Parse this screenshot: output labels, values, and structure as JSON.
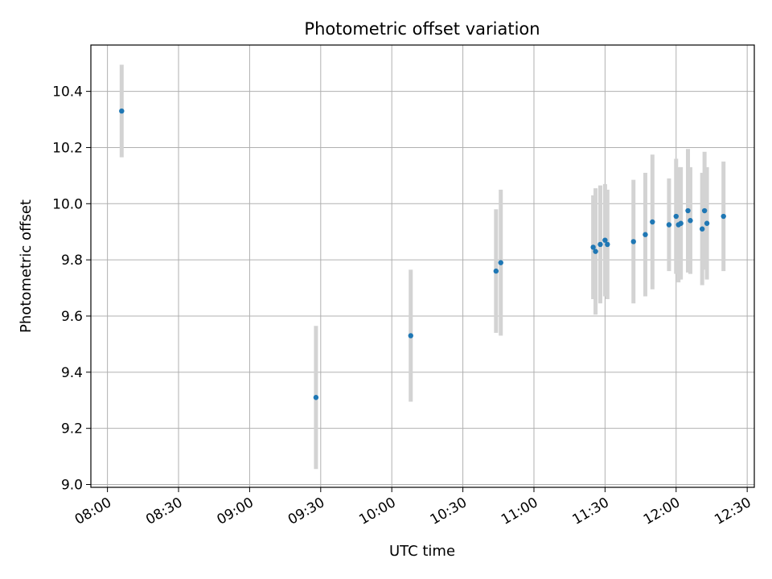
{
  "chart_data": {
    "type": "scatter",
    "title": "Photometric offset variation",
    "xlabel": "UTC time",
    "ylabel": "Photometric offset",
    "xlim": [
      "07:53",
      "12:33"
    ],
    "ylim": [
      8.99,
      10.565
    ],
    "grid": true,
    "x_ticks": [
      "08:00",
      "08:30",
      "09:00",
      "09:30",
      "10:00",
      "10:30",
      "11:00",
      "11:30",
      "12:00",
      "12:30"
    ],
    "y_ticks": [
      "9.0",
      "9.2",
      "9.4",
      "9.6",
      "9.8",
      "10.0",
      "10.2",
      "10.4"
    ],
    "point_color": "#1f77b4",
    "errorbar_color": "#d3d3d3",
    "points": [
      {
        "x": "08:06",
        "y": 10.33,
        "err": 0.165
      },
      {
        "x": "09:28",
        "y": 9.31,
        "err": 0.255
      },
      {
        "x": "10:08",
        "y": 9.53,
        "err": 0.235
      },
      {
        "x": "10:44",
        "y": 9.76,
        "err": 0.22
      },
      {
        "x": "10:46",
        "y": 9.79,
        "err": 0.26
      },
      {
        "x": "11:25",
        "y": 9.845,
        "err": 0.185
      },
      {
        "x": "11:26",
        "y": 9.83,
        "err": 0.225
      },
      {
        "x": "11:28",
        "y": 9.855,
        "err": 0.21
      },
      {
        "x": "11:30",
        "y": 9.87,
        "err": 0.2
      },
      {
        "x": "11:31",
        "y": 9.855,
        "err": 0.195
      },
      {
        "x": "11:42",
        "y": 9.865,
        "err": 0.22
      },
      {
        "x": "11:47",
        "y": 9.89,
        "err": 0.22
      },
      {
        "x": "11:50",
        "y": 9.935,
        "err": 0.24
      },
      {
        "x": "11:57",
        "y": 9.925,
        "err": 0.165
      },
      {
        "x": "12:00",
        "y": 9.955,
        "err": 0.205
      },
      {
        "x": "12:01",
        "y": 9.925,
        "err": 0.205
      },
      {
        "x": "12:02",
        "y": 9.93,
        "err": 0.2
      },
      {
        "x": "12:05",
        "y": 9.975,
        "err": 0.22
      },
      {
        "x": "12:06",
        "y": 9.94,
        "err": 0.19
      },
      {
        "x": "12:11",
        "y": 9.91,
        "err": 0.2
      },
      {
        "x": "12:12",
        "y": 9.975,
        "err": 0.21
      },
      {
        "x": "12:13",
        "y": 9.93,
        "err": 0.2
      },
      {
        "x": "12:20",
        "y": 9.955,
        "err": 0.195
      }
    ]
  }
}
